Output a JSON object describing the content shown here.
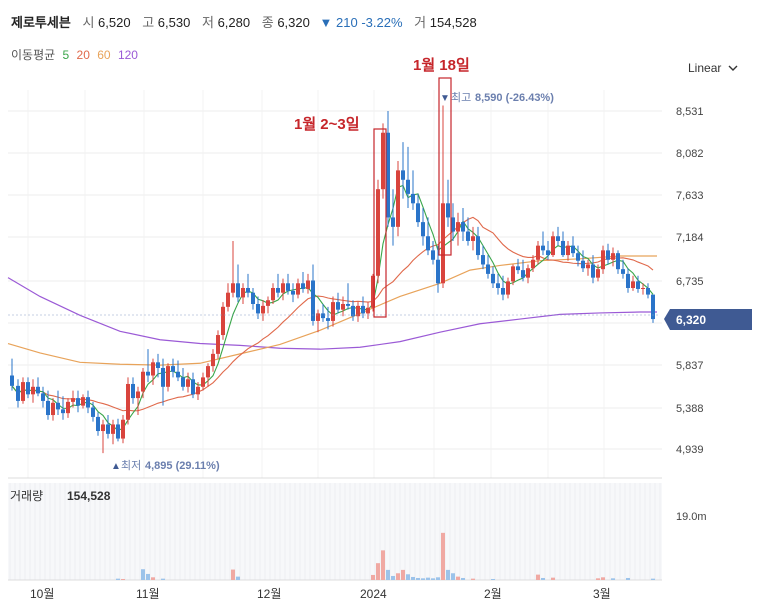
{
  "header": {
    "name": "제로투세븐",
    "open_label": "시",
    "open": "6,520",
    "high_label": "고",
    "high": "6,530",
    "low_label": "저",
    "low": "6,280",
    "close_label": "종",
    "close": "6,320",
    "change_arrow": "▼",
    "change": "210",
    "change_pct": "-3.22%",
    "volume_label": "거",
    "volume": "154,528"
  },
  "moving_average": {
    "label": "이동평균",
    "periods": [
      {
        "label": "5",
        "color": "#3aa64a"
      },
      {
        "label": "20",
        "color": "#e0694b"
      },
      {
        "label": "60",
        "color": "#e8a35a"
      },
      {
        "label": "120",
        "color": "#9b5ad6"
      }
    ]
  },
  "scale_toggle": {
    "label": "Linear",
    "icon": "chevron-down-icon"
  },
  "chart_data": {
    "type": "candlestick",
    "y_ticks": [
      "8,531",
      "8,082",
      "7,633",
      "7,184",
      "6,735",
      "5,837",
      "5,388",
      "4,939"
    ],
    "x_ticks": [
      "10월",
      "11월",
      "12월",
      "2024",
      "2월",
      "3월"
    ],
    "current_price": "6,320",
    "max_marker": {
      "label": "최고",
      "value": "8,590 (-26.43%)"
    },
    "min_marker": {
      "label": "최저",
      "value": "4,895 (29.11%)"
    },
    "annotations": [
      "1월 2~3일",
      "1월 18일"
    ],
    "volume_panel": {
      "label": "거래량",
      "value": "154,528",
      "y_tick": "19.0m"
    },
    "colors": {
      "up": "#d9443d",
      "down": "#2a74c9",
      "current": "#3f5a93"
    }
  }
}
